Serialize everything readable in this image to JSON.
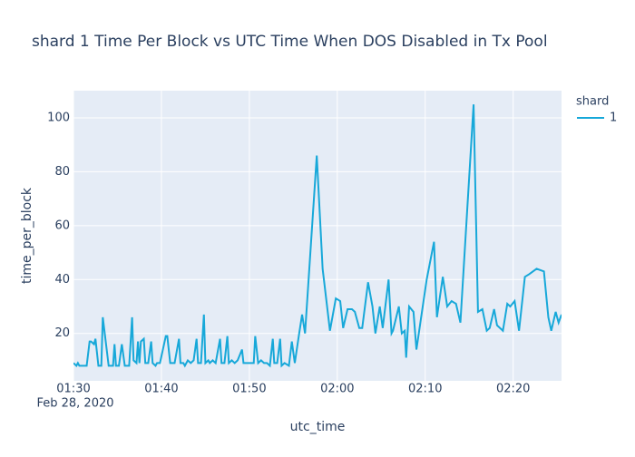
{
  "chart_data": {
    "type": "line",
    "title": "shard 1 Time Per Block vs UTC Time When DOS Disabled in Tx Pool",
    "x_label": "utc_time",
    "y_label": "time_per_block",
    "legend_title": "shard",
    "x_tick_date": "Feb 28, 2020",
    "xlim": [
      "2020-02-28 01:30:00",
      "2020-02-28 02:25:30"
    ],
    "xticks": [
      {
        "value": "2020-02-28 01:30:00",
        "label": "01:30"
      },
      {
        "value": "2020-02-28 01:40:00",
        "label": "01:40"
      },
      {
        "value": "2020-02-28 01:50:00",
        "label": "01:50"
      },
      {
        "value": "2020-02-28 02:00:00",
        "label": "02:00"
      },
      {
        "value": "2020-02-28 02:10:00",
        "label": "02:10"
      },
      {
        "value": "2020-02-28 02:20:00",
        "label": "02:20"
      }
    ],
    "ylim": [
      2.4,
      110.1
    ],
    "yticks": [
      20,
      40,
      60,
      80,
      100
    ],
    "grid": true,
    "x": [
      "2020-02-28 01:30:00",
      "2020-02-28 01:30:20",
      "2020-02-28 01:30:30",
      "2020-02-28 01:30:40",
      "2020-02-28 01:31:00",
      "2020-02-28 01:31:30",
      "2020-02-28 01:31:50",
      "2020-02-28 01:32:00",
      "2020-02-28 01:32:20",
      "2020-02-28 01:32:30",
      "2020-02-28 01:32:50",
      "2020-02-28 01:33:10",
      "2020-02-28 01:33:20",
      "2020-02-28 01:33:40",
      "2020-02-28 01:34:00",
      "2020-02-28 01:34:30",
      "2020-02-28 01:34:40",
      "2020-02-28 01:34:50",
      "2020-02-28 01:35:10",
      "2020-02-28 01:35:30",
      "2020-02-28 01:35:50",
      "2020-02-28 01:36:20",
      "2020-02-28 01:36:40",
      "2020-02-28 01:36:50",
      "2020-02-28 01:37:10",
      "2020-02-28 01:37:20",
      "2020-02-28 01:37:30",
      "2020-02-28 01:37:40",
      "2020-02-28 01:38:00",
      "2020-02-28 01:38:10",
      "2020-02-28 01:38:30",
      "2020-02-28 01:38:50",
      "2020-02-28 01:39:00",
      "2020-02-28 01:39:20",
      "2020-02-28 01:39:30",
      "2020-02-28 01:39:50",
      "2020-02-28 01:40:30",
      "2020-02-28 01:40:40",
      "2020-02-28 01:41:00",
      "2020-02-28 01:41:30",
      "2020-02-28 01:42:00",
      "2020-02-28 01:42:10",
      "2020-02-28 01:42:30",
      "2020-02-28 01:42:40",
      "2020-02-28 01:43:00",
      "2020-02-28 01:43:20",
      "2020-02-28 01:43:40",
      "2020-02-28 01:44:00",
      "2020-02-28 01:44:10",
      "2020-02-28 01:44:30",
      "2020-02-28 01:44:50",
      "2020-02-28 01:45:00",
      "2020-02-28 01:45:20",
      "2020-02-28 01:45:30",
      "2020-02-28 01:45:50",
      "2020-02-28 01:46:10",
      "2020-02-28 01:46:40",
      "2020-02-28 01:46:50",
      "2020-02-28 01:47:10",
      "2020-02-28 01:47:30",
      "2020-02-28 01:47:40",
      "2020-02-28 01:48:00",
      "2020-02-28 01:48:20",
      "2020-02-28 01:48:40",
      "2020-02-28 01:49:10",
      "2020-02-28 01:49:20",
      "2020-02-28 01:49:50",
      "2020-02-28 01:50:30",
      "2020-02-28 01:50:40",
      "2020-02-28 01:51:00",
      "2020-02-28 01:51:20",
      "2020-02-28 01:51:40",
      "2020-02-28 01:52:00",
      "2020-02-28 01:52:20",
      "2020-02-28 01:52:40",
      "2020-02-28 01:52:50",
      "2020-02-28 01:53:10",
      "2020-02-28 01:53:30",
      "2020-02-28 01:53:40",
      "2020-02-28 01:54:00",
      "2020-02-28 01:54:30",
      "2020-02-28 01:54:50",
      "2020-02-28 01:55:10",
      "2020-02-28 01:55:40",
      "2020-02-28 01:56:00",
      "2020-02-28 01:56:20",
      "2020-02-28 01:57:40",
      "2020-02-28 01:58:20",
      "2020-02-28 01:59:10",
      "2020-02-28 01:59:50",
      "2020-02-28 02:00:20",
      "2020-02-28 02:00:40",
      "2020-02-28 02:01:10",
      "2020-02-28 02:01:40",
      "2020-02-28 02:02:00",
      "2020-02-28 02:02:30",
      "2020-02-28 02:02:50",
      "2020-02-28 02:03:30",
      "2020-02-28 02:04:00",
      "2020-02-28 02:04:20",
      "2020-02-28 02:04:50",
      "2020-02-28 02:05:10",
      "2020-02-28 02:05:50",
      "2020-02-28 02:06:10",
      "2020-02-28 02:06:20",
      "2020-02-28 02:07:00",
      "2020-02-28 02:07:20",
      "2020-02-28 02:07:40",
      "2020-02-28 02:07:50",
      "2020-02-28 02:08:10",
      "2020-02-28 02:08:40",
      "2020-02-28 02:09:00",
      "2020-02-28 02:10:10",
      "2020-02-28 02:11:00",
      "2020-02-28 02:11:20",
      "2020-02-28 02:12:00",
      "2020-02-28 02:12:30",
      "2020-02-28 02:13:00",
      "2020-02-28 02:13:30",
      "2020-02-28 02:14:00",
      "2020-02-28 02:15:30",
      "2020-02-28 02:16:00",
      "2020-02-28 02:16:30",
      "2020-02-28 02:17:00",
      "2020-02-28 02:17:20",
      "2020-02-28 02:17:50",
      "2020-02-28 02:18:10",
      "2020-02-28 02:18:50",
      "2020-02-28 02:19:20",
      "2020-02-28 02:19:40",
      "2020-02-28 02:20:10",
      "2020-02-28 02:20:40",
      "2020-02-28 02:21:20",
      "2020-02-28 02:21:50",
      "2020-02-28 02:22:40",
      "2020-02-28 02:23:30",
      "2020-02-28 02:24:00",
      "2020-02-28 02:24:20",
      "2020-02-28 02:24:50",
      "2020-02-28 02:25:10",
      "2020-02-28 02:25:30"
    ],
    "series": [
      {
        "name": "1",
        "color": "#17a8d9",
        "values": [
          9,
          8,
          9,
          8,
          8,
          8,
          17,
          17,
          16,
          18,
          8,
          8,
          26,
          17,
          8,
          8,
          16,
          8,
          8,
          16,
          8,
          8,
          26,
          10,
          9,
          17,
          9,
          17,
          18,
          9,
          9,
          17,
          9,
          8,
          9,
          9,
          19,
          19,
          9,
          9,
          18,
          9,
          9,
          8,
          10,
          9,
          10,
          18,
          9,
          9,
          27,
          9,
          10,
          9,
          10,
          9,
          18,
          9,
          9,
          19,
          9,
          10,
          9,
          10,
          14,
          9,
          9,
          9,
          19,
          9,
          10,
          9,
          9,
          8,
          18,
          9,
          9,
          18,
          8,
          9,
          8,
          17,
          9,
          20,
          27,
          20,
          86,
          44,
          21,
          33,
          32,
          22,
          29,
          29,
          28,
          22,
          22,
          39,
          30,
          20,
          30,
          22,
          40,
          20,
          21,
          30,
          20,
          21,
          11,
          30,
          28,
          14,
          40,
          54,
          26,
          41,
          30,
          32,
          31,
          24,
          105,
          28,
          29,
          21,
          22,
          29,
          23,
          21,
          31,
          30,
          32,
          21,
          41,
          42,
          44,
          43,
          26,
          21,
          28,
          24,
          27
        ]
      }
    ]
  }
}
